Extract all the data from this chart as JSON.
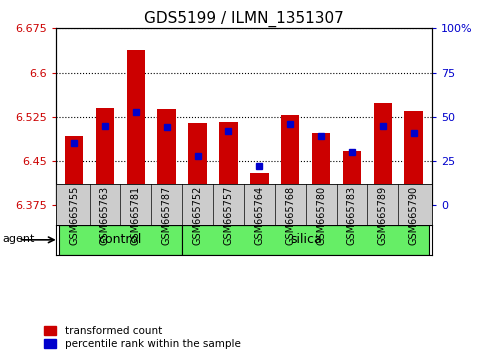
{
  "title": "GDS5199 / ILMN_1351307",
  "samples": [
    "GSM665755",
    "GSM665763",
    "GSM665781",
    "GSM665787",
    "GSM665752",
    "GSM665757",
    "GSM665764",
    "GSM665768",
    "GSM665780",
    "GSM665783",
    "GSM665789",
    "GSM665790"
  ],
  "groups": [
    "control",
    "control",
    "control",
    "control",
    "silica",
    "silica",
    "silica",
    "silica",
    "silica",
    "silica",
    "silica",
    "silica"
  ],
  "transformed_count": [
    6.493,
    6.54,
    6.638,
    6.538,
    6.515,
    6.516,
    6.43,
    6.528,
    6.497,
    6.467,
    6.548,
    6.535
  ],
  "percentile_rank": [
    35,
    45,
    53,
    44,
    28,
    42,
    22,
    46,
    39,
    30,
    45,
    41
  ],
  "ymin": 6.375,
  "ymax": 6.675,
  "yticks": [
    6.375,
    6.45,
    6.525,
    6.6,
    6.675
  ],
  "ytick_labels": [
    "6.375",
    "6.45",
    "6.525",
    "6.6",
    "6.675"
  ],
  "right_yticks": [
    0,
    25,
    50,
    75,
    100
  ],
  "right_ytick_labels": [
    "0",
    "25",
    "50",
    "75",
    "100%"
  ],
  "bar_color": "#cc0000",
  "percentile_color": "#0000cc",
  "group_color": "#66ee66",
  "agent_label": "agent",
  "legend_red": "transformed count",
  "legend_blue": "percentile rank within the sample",
  "bar_width": 0.6,
  "title_fontsize": 11,
  "tick_fontsize": 8,
  "axis_label_color_left": "#cc0000",
  "axis_label_color_right": "#0000cc",
  "xtick_bg": "#cccccc",
  "n_control": 4
}
